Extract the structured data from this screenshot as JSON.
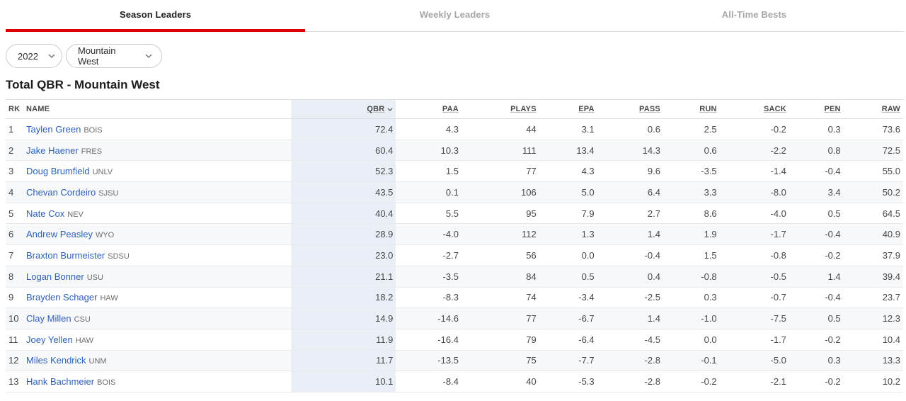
{
  "tabs": [
    {
      "label": "Season Leaders",
      "active": true
    },
    {
      "label": "Weekly Leaders",
      "active": false
    },
    {
      "label": "All-Time Bests",
      "active": false
    }
  ],
  "filters": {
    "year": "2022",
    "conference": "Mountain West"
  },
  "title": "Total QBR - Mountain West",
  "table": {
    "headers": {
      "rk": "RK",
      "name": "NAME",
      "qbr": "QBR",
      "paa": "PAA",
      "plays": "PLAYS",
      "epa": "EPA",
      "pass": "PASS",
      "run": "RUN",
      "sack": "SACK",
      "pen": "PEN",
      "raw": "RAW"
    },
    "rows": [
      {
        "rk": "1",
        "name": "Taylen Green",
        "team": "BOIS",
        "qbr": "72.4",
        "paa": "4.3",
        "plays": "44",
        "epa": "3.1",
        "pass": "0.6",
        "run": "2.5",
        "sack": "-0.2",
        "pen": "0.3",
        "raw": "73.6"
      },
      {
        "rk": "2",
        "name": "Jake Haener",
        "team": "FRES",
        "qbr": "60.4",
        "paa": "10.3",
        "plays": "111",
        "epa": "13.4",
        "pass": "14.3",
        "run": "0.6",
        "sack": "-2.2",
        "pen": "0.8",
        "raw": "72.5"
      },
      {
        "rk": "3",
        "name": "Doug Brumfield",
        "team": "UNLV",
        "qbr": "52.3",
        "paa": "1.5",
        "plays": "77",
        "epa": "4.3",
        "pass": "9.6",
        "run": "-3.5",
        "sack": "-1.4",
        "pen": "-0.4",
        "raw": "55.0"
      },
      {
        "rk": "4",
        "name": "Chevan Cordeiro",
        "team": "SJSU",
        "qbr": "43.5",
        "paa": "0.1",
        "plays": "106",
        "epa": "5.0",
        "pass": "6.4",
        "run": "3.3",
        "sack": "-8.0",
        "pen": "3.4",
        "raw": "50.2"
      },
      {
        "rk": "5",
        "name": "Nate Cox",
        "team": "NEV",
        "qbr": "40.4",
        "paa": "5.5",
        "plays": "95",
        "epa": "7.9",
        "pass": "2.7",
        "run": "8.6",
        "sack": "-4.0",
        "pen": "0.5",
        "raw": "64.5"
      },
      {
        "rk": "6",
        "name": "Andrew Peasley",
        "team": "WYO",
        "qbr": "28.9",
        "paa": "-4.0",
        "plays": "112",
        "epa": "1.3",
        "pass": "1.4",
        "run": "1.9",
        "sack": "-1.7",
        "pen": "-0.4",
        "raw": "40.9"
      },
      {
        "rk": "7",
        "name": "Braxton Burmeister",
        "team": "SDSU",
        "qbr": "23.0",
        "paa": "-2.7",
        "plays": "56",
        "epa": "0.0",
        "pass": "-0.4",
        "run": "1.5",
        "sack": "-0.8",
        "pen": "-0.2",
        "raw": "37.9"
      },
      {
        "rk": "8",
        "name": "Logan Bonner",
        "team": "USU",
        "qbr": "21.1",
        "paa": "-3.5",
        "plays": "84",
        "epa": "0.5",
        "pass": "0.4",
        "run": "-0.8",
        "sack": "-0.5",
        "pen": "1.4",
        "raw": "39.4"
      },
      {
        "rk": "9",
        "name": "Brayden Schager",
        "team": "HAW",
        "qbr": "18.2",
        "paa": "-8.3",
        "plays": "74",
        "epa": "-3.4",
        "pass": "-2.5",
        "run": "0.3",
        "sack": "-0.7",
        "pen": "-0.4",
        "raw": "23.7"
      },
      {
        "rk": "10",
        "name": "Clay Millen",
        "team": "CSU",
        "qbr": "14.9",
        "paa": "-14.6",
        "plays": "77",
        "epa": "-6.7",
        "pass": "1.4",
        "run": "-1.0",
        "sack": "-7.5",
        "pen": "0.5",
        "raw": "12.3"
      },
      {
        "rk": "11",
        "name": "Joey Yellen",
        "team": "HAW",
        "qbr": "11.9",
        "paa": "-16.4",
        "plays": "79",
        "epa": "-6.4",
        "pass": "-4.5",
        "run": "0.0",
        "sack": "-1.7",
        "pen": "-0.2",
        "raw": "10.4"
      },
      {
        "rk": "12",
        "name": "Miles Kendrick",
        "team": "UNM",
        "qbr": "11.7",
        "paa": "-13.5",
        "plays": "75",
        "epa": "-7.7",
        "pass": "-2.8",
        "run": "-0.1",
        "sack": "-5.0",
        "pen": "0.3",
        "raw": "13.3"
      },
      {
        "rk": "13",
        "name": "Hank Bachmeier",
        "team": "BOIS",
        "qbr": "10.1",
        "paa": "-8.4",
        "plays": "40",
        "epa": "-5.3",
        "pass": "-2.8",
        "run": "-0.2",
        "sack": "-2.1",
        "pen": "-0.2",
        "raw": "10.2"
      }
    ]
  },
  "colors": {
    "accent": "#dd0000",
    "link": "#2e61b8",
    "qbr_highlight": "#e9eef7"
  }
}
